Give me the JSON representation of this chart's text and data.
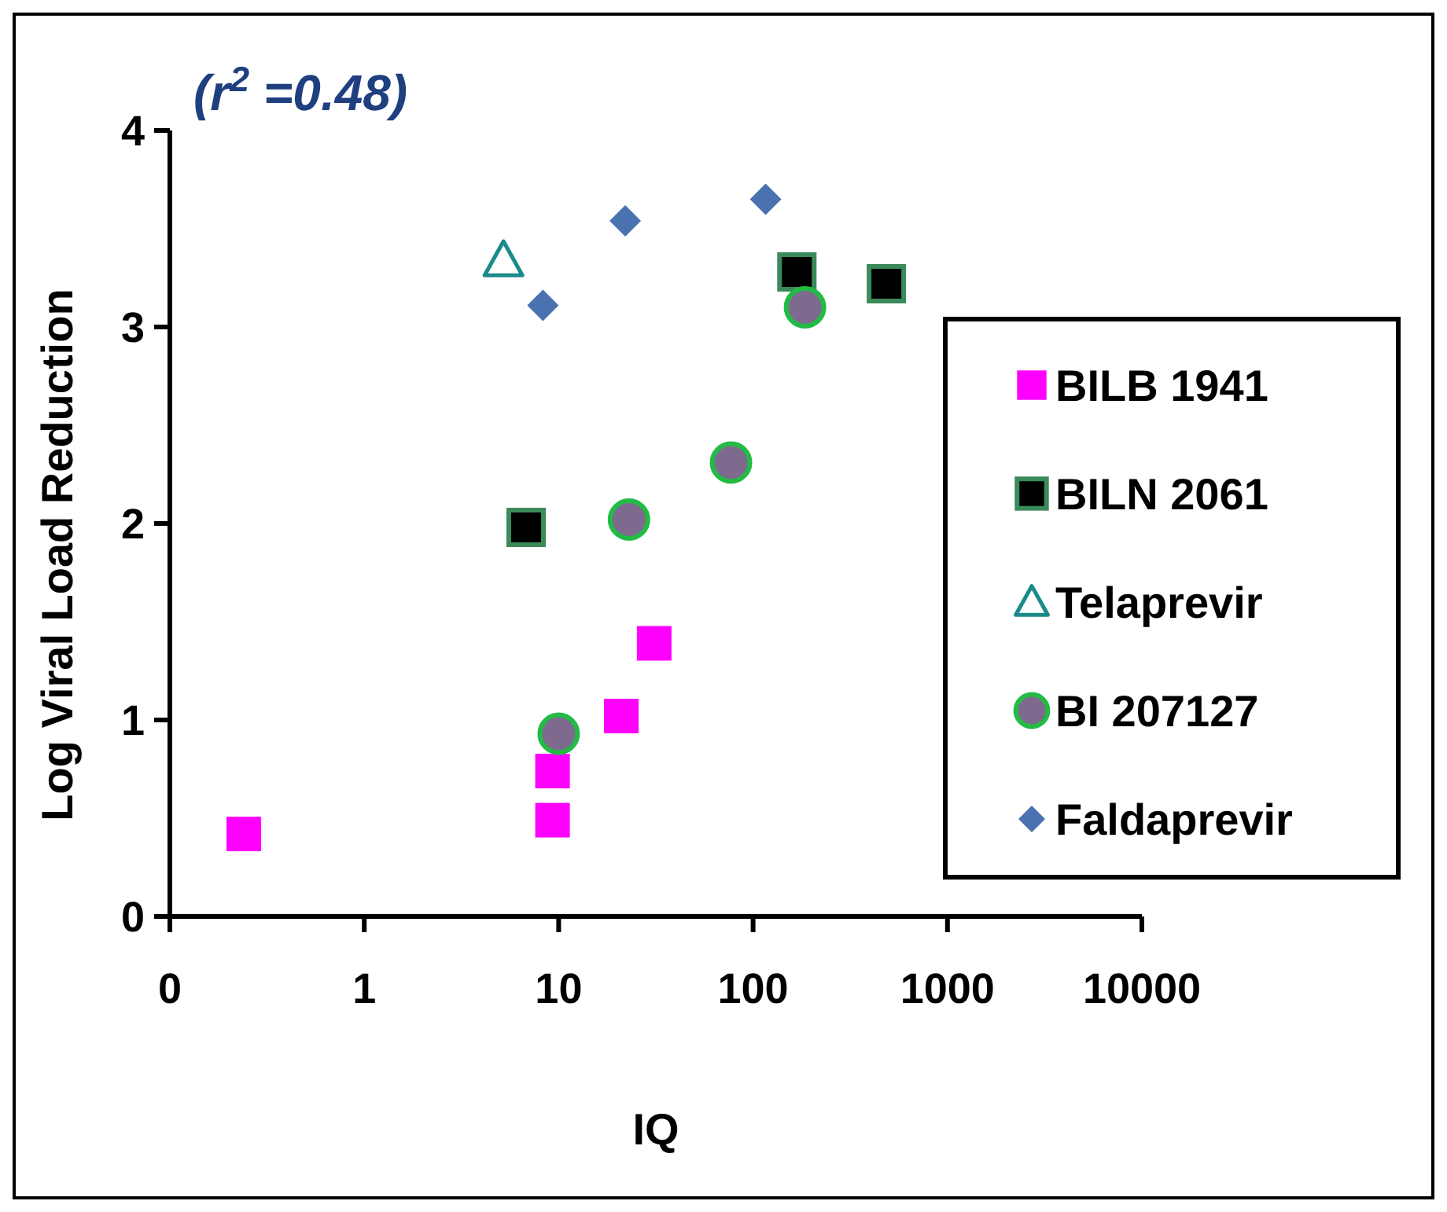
{
  "chart_data": {
    "type": "scatter",
    "xlabel": "IQ",
    "ylabel": "Log Viral Load Reduction",
    "log": "x",
    "xlim": [
      0.1,
      10000
    ],
    "xticks": [
      {
        "value": 0.1,
        "label": "0"
      },
      1,
      10,
      100,
      1000,
      10000
    ],
    "ylim": [
      0,
      4
    ],
    "yticks": [
      0,
      1,
      2,
      3,
      4
    ],
    "grid": false,
    "legend": "right",
    "annotations": [
      "(r$^{2}$ =0.48)"
    ],
    "series": [
      {
        "name": "BILB 1941",
        "color": "#ff00ff",
        "marker": "square",
        "x": [
          0.24,
          9.3,
          9.3,
          21,
          31
        ],
        "values": [
          0.42,
          0.74,
          0.49,
          1.02,
          1.39
        ]
      },
      {
        "name": "BILN 2061",
        "color": "#000000",
        "marker": "square",
        "x": [
          6.8,
          168,
          485
        ],
        "values": [
          1.98,
          3.28,
          3.22
        ]
      },
      {
        "name": "Telaprevir",
        "color": "#1a8a8a",
        "marker": "triangle",
        "x": [
          5.2
        ],
        "values": [
          3.34
        ]
      },
      {
        "name": "BI 207127",
        "color": "#7f6a8f",
        "marker": "circle",
        "x": [
          10,
          23,
          77,
          185
        ],
        "values": [
          0.93,
          2.02,
          2.31,
          3.1
        ]
      },
      {
        "name": "Faldaprevir",
        "color": "#4a72b0",
        "marker": "diamond",
        "x": [
          8.3,
          22,
          116
        ],
        "values": [
          3.11,
          3.54,
          3.65
        ]
      }
    ]
  }
}
